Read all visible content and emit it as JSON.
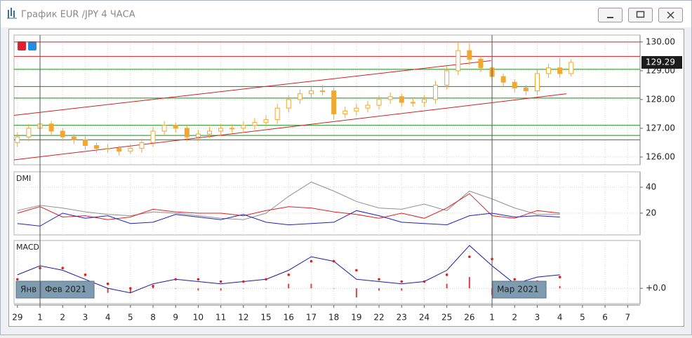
{
  "window": {
    "title": "График EUR /JPY  4 ЧАСА"
  },
  "chart_data": [
    {
      "type": "candlestick",
      "up_color": "#f0a830",
      "down_color": "#f0a830",
      "x": [
        0,
        1,
        2,
        3,
        4,
        5,
        6,
        7,
        8,
        9,
        10,
        11,
        12,
        13,
        14,
        15,
        16,
        17,
        18,
        19,
        20,
        21,
        22,
        23,
        24,
        25,
        26,
        27,
        28,
        29,
        30,
        31,
        32,
        33,
        34,
        35,
        36,
        37,
        38,
        39,
        40,
        41,
        42,
        43,
        44,
        45,
        46,
        47,
        48,
        49
      ],
      "open": [
        126.5,
        126.7,
        127.0,
        127.15,
        126.9,
        126.7,
        126.6,
        126.4,
        126.3,
        126.3,
        126.2,
        126.3,
        126.5,
        126.9,
        127.1,
        127.0,
        126.7,
        126.8,
        126.9,
        127.0,
        127.0,
        127.1,
        127.2,
        127.3,
        127.7,
        128.0,
        128.2,
        128.3,
        128.3,
        127.5,
        127.6,
        127.7,
        127.8,
        128.0,
        128.1,
        127.9,
        127.9,
        128.0,
        128.5,
        129.0,
        129.7,
        129.4,
        129.1,
        128.8,
        128.6,
        128.4,
        128.3,
        128.9,
        129.1,
        128.9
      ],
      "high": [
        126.85,
        127.15,
        127.3,
        127.25,
        127.0,
        126.8,
        126.7,
        126.5,
        126.45,
        126.4,
        126.45,
        126.65,
        127.05,
        127.25,
        127.2,
        127.1,
        126.95,
        127.05,
        127.15,
        127.15,
        127.25,
        127.35,
        127.45,
        127.85,
        128.15,
        128.35,
        128.45,
        128.5,
        128.4,
        127.75,
        127.85,
        127.95,
        128.15,
        128.25,
        128.2,
        128.05,
        128.15,
        128.65,
        129.15,
        130.0,
        129.95,
        129.5,
        129.2,
        128.9,
        128.7,
        128.5,
        129.05,
        129.25,
        129.45,
        129.4
      ],
      "low": [
        126.35,
        126.55,
        126.85,
        126.75,
        126.55,
        126.45,
        126.25,
        126.15,
        126.15,
        126.05,
        126.1,
        126.15,
        126.35,
        126.75,
        126.85,
        126.55,
        126.55,
        126.65,
        126.75,
        126.85,
        126.85,
        126.95,
        127.05,
        127.15,
        127.55,
        127.85,
        128.05,
        128.15,
        127.3,
        127.35,
        127.45,
        127.55,
        127.65,
        127.85,
        127.75,
        127.75,
        127.75,
        127.85,
        128.35,
        128.85,
        129.2,
        128.95,
        128.65,
        128.45,
        128.25,
        128.15,
        128.15,
        128.75,
        128.75,
        128.8
      ],
      "close": [
        126.7,
        127.0,
        127.15,
        126.9,
        126.7,
        126.6,
        126.4,
        126.3,
        126.3,
        126.2,
        126.3,
        126.5,
        126.9,
        127.1,
        127.0,
        126.7,
        126.8,
        126.9,
        127.0,
        127.0,
        127.1,
        127.2,
        127.3,
        127.7,
        128.0,
        128.2,
        128.3,
        128.3,
        127.5,
        127.6,
        127.7,
        127.8,
        128.0,
        128.1,
        127.9,
        127.9,
        128.0,
        128.5,
        129.0,
        129.7,
        129.4,
        129.1,
        128.8,
        128.6,
        128.4,
        128.3,
        128.9,
        129.1,
        128.9,
        129.29
      ],
      "last_price": 129.29,
      "xlim": [
        -0.3,
        55.1
      ],
      "ylim": [
        125.73,
        130.24
      ],
      "yticks": [
        {
          "value": 126,
          "label": "126.00"
        },
        {
          "value": 127,
          "label": "127.00"
        },
        {
          "value": 128,
          "label": "128.00"
        },
        {
          "value": 129,
          "label": "129.00"
        },
        {
          "value": 130,
          "label": "130.00"
        }
      ],
      "xticks": [
        {
          "value": 0,
          "label": "29"
        },
        {
          "value": 2,
          "label": "1"
        },
        {
          "value": 4,
          "label": "2"
        },
        {
          "value": 6,
          "label": "3"
        },
        {
          "value": 8,
          "label": "4"
        },
        {
          "value": 10,
          "label": "5"
        },
        {
          "value": 12,
          "label": "8"
        },
        {
          "value": 14,
          "label": "9"
        },
        {
          "value": 16,
          "label": "10"
        },
        {
          "value": 18,
          "label": "11"
        },
        {
          "value": 20,
          "label": "12"
        },
        {
          "value": 22,
          "label": "15"
        },
        {
          "value": 24,
          "label": "16"
        },
        {
          "value": 26,
          "label": "17"
        },
        {
          "value": 28,
          "label": "18"
        },
        {
          "value": 30,
          "label": "19"
        },
        {
          "value": 32,
          "label": "22"
        },
        {
          "value": 34,
          "label": "23"
        },
        {
          "value": 36,
          "label": "24"
        },
        {
          "value": 38,
          "label": "25"
        },
        {
          "value": 40,
          "label": "26"
        },
        {
          "value": 42,
          "label": "1"
        },
        {
          "value": 44,
          "label": "2"
        },
        {
          "value": 46,
          "label": "3"
        },
        {
          "value": 48,
          "label": "4"
        },
        {
          "value": 50,
          "label": "5"
        },
        {
          "value": 52,
          "label": "6"
        },
        {
          "value": 54,
          "label": "7"
        }
      ],
      "level_lines": [
        {
          "color": "#d02020",
          "values": [
            130.0,
            129.5
          ]
        },
        {
          "color": "#109010",
          "values": [
            129.05,
            128.45,
            128.05,
            127.1,
            126.75,
            126.6
          ]
        }
      ],
      "trendlines": [
        {
          "color": "#d02020",
          "x": [
            -0.3,
            41.9
          ],
          "y": [
            127.45,
            129.35
          ]
        },
        {
          "color": "#d02020",
          "x": [
            -0.3,
            48.6
          ],
          "y": [
            125.9,
            128.2
          ]
        }
      ],
      "periods": [
        {
          "label": "Янв"
        },
        {
          "label": "Фев 2021",
          "x": 2
        },
        {
          "label": "Мар 2021",
          "x": 42
        }
      ],
      "grid": true
    },
    {
      "type": "line",
      "label": "DMI",
      "x": [
        0,
        2,
        4,
        6,
        8,
        10,
        12,
        14,
        16,
        18,
        20,
        22,
        24,
        26,
        28,
        30,
        32,
        34,
        36,
        38,
        40,
        42,
        44,
        46,
        48
      ],
      "xlim": [
        -0.3,
        55.1
      ],
      "ylim": [
        3.2,
        51.9
      ],
      "yticks": [
        20,
        40
      ],
      "grid": true,
      "series": [
        {
          "color": "#909090",
          "values": [
            22,
            26,
            24,
            21,
            19,
            18,
            21,
            20,
            18,
            16,
            15,
            20,
            33,
            44,
            37,
            29,
            24,
            23,
            27,
            22,
            37,
            31,
            24,
            19,
            19
          ]
        },
        {
          "color": "#e02020",
          "values": [
            20,
            25,
            17,
            18,
            15,
            17,
            23,
            21,
            20,
            20,
            18,
            22,
            25,
            24,
            21,
            19,
            16,
            20,
            16,
            24,
            35,
            18,
            16,
            22,
            20
          ]
        },
        {
          "color": "#2020c0",
          "values": [
            12,
            10,
            20,
            16,
            18,
            12,
            13,
            19,
            17,
            15,
            19,
            13,
            11,
            12,
            13,
            22,
            18,
            13,
            12,
            11,
            18,
            20,
            17,
            18,
            17
          ]
        }
      ]
    },
    {
      "type": "line",
      "label": "MACD",
      "x": [
        0,
        2,
        4,
        6,
        8,
        10,
        12,
        14,
        16,
        18,
        20,
        22,
        24,
        26,
        28,
        30,
        32,
        34,
        36,
        38,
        40,
        42,
        44,
        46,
        48
      ],
      "xlim": [
        -0.3,
        55.1
      ],
      "ylim": [
        -0.34,
        1.06
      ],
      "yticks": [
        {
          "value": 0,
          "label": "+0.0"
        }
      ],
      "grid": true,
      "series": [
        {
          "style": "bars",
          "color": "#e04040",
          "values": [
            0.1,
            0.05,
            -0.05,
            -0.1,
            -0.1,
            -0.1,
            0.05,
            0,
            -0.05,
            -0.05,
            0,
            0,
            0.1,
            0.1,
            0,
            -0.2,
            -0.05,
            -0.05,
            0,
            0.1,
            0.25,
            -0.15,
            -0.1,
            0.1,
            0.05
          ]
        },
        {
          "style": "line",
          "color": "#1a1aa0",
          "values": [
            0.3,
            0.5,
            0.4,
            0.2,
            0.0,
            -0.1,
            0.1,
            0.2,
            0.15,
            0.1,
            0.15,
            0.2,
            0.4,
            0.7,
            0.6,
            0.2,
            0.15,
            0.1,
            0.15,
            0.4,
            0.95,
            0.5,
            0.1,
            0.25,
            0.3
          ]
        },
        {
          "style": "dots",
          "color": "#e02020",
          "values": [
            0.2,
            0.45,
            0.45,
            0.3,
            0.1,
            0.0,
            0.05,
            0.2,
            0.2,
            0.15,
            0.15,
            0.2,
            0.3,
            0.6,
            0.6,
            0.4,
            0.2,
            0.15,
            0.15,
            0.3,
            0.7,
            0.65,
            0.2,
            0.15,
            0.25
          ]
        }
      ]
    }
  ]
}
